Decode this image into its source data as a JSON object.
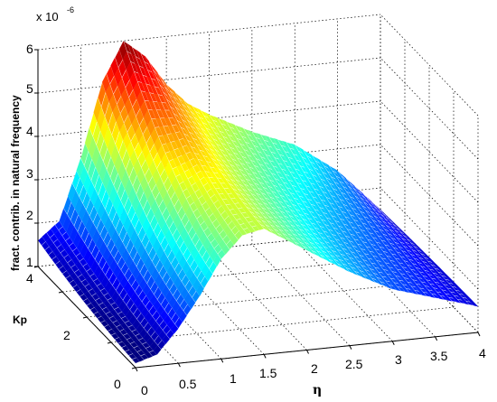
{
  "chart_data": {
    "type": "surface",
    "x_axis": {
      "label": "η",
      "range": [
        0,
        4
      ],
      "ticks": [
        "0",
        "0.5",
        "1",
        "1.5",
        "2",
        "2.5",
        "3",
        "3.5",
        "4"
      ]
    },
    "y_axis": {
      "label": "Kp",
      "range": [
        0,
        4
      ],
      "ticks": [
        "0",
        "2",
        "4"
      ]
    },
    "z_axis": {
      "label": "fract. contrib. in natural frequency",
      "range": [
        1,
        6
      ],
      "ticks": [
        "1",
        "2",
        "3",
        "4",
        "5",
        "6"
      ],
      "multiplier_base": "x 10",
      "multiplier_exponent": "-6"
    },
    "grid": true,
    "colormap": "jet",
    "surface_profile": {
      "x": [
        0,
        0.25,
        0.5,
        0.75,
        1,
        1.25,
        1.5,
        1.75,
        2,
        2.5,
        3,
        3.5,
        4
      ],
      "z_at_Kp_4": [
        1.6,
        2.0,
        3.4,
        5.1,
        6.0,
        5.6,
        4.9,
        4.4,
        4.1,
        3.6,
        3.2,
        2.5,
        1.5
      ],
      "z_at_Kp_0": [
        1.1,
        1.25,
        1.8,
        2.5,
        3.3,
        3.8,
        3.9,
        3.6,
        3.3,
        2.7,
        2.2,
        1.9,
        1.6
      ]
    }
  }
}
